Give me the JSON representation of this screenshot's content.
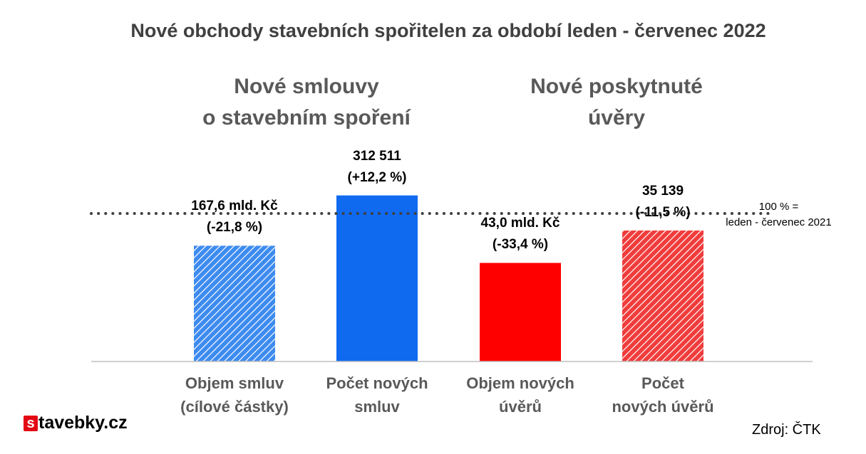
{
  "chart_data": {
    "type": "bar",
    "title": "Nové obchody stavebních spořitelen za období leden - červenec 2022",
    "groups": [
      {
        "lines": [
          "Nové smlouvy",
          "o stavebním spoření"
        ]
      },
      {
        "lines": [
          "Nové poskytnuté",
          "úvěry"
        ]
      }
    ],
    "categories": [
      {
        "lines": [
          "Objem smluv",
          "(cílové částky)"
        ]
      },
      {
        "lines": [
          "Počet  nových",
          "smluv"
        ]
      },
      {
        "lines": [
          "Objem nových",
          "úvěrů"
        ]
      },
      {
        "lines": [
          "Počet",
          "nových úvěrů"
        ]
      }
    ],
    "values": [
      78.2,
      112.2,
      66.6,
      88.5
    ],
    "value_unit": "% of leden - červenec 2021",
    "data_labels": [
      [
        "167,6 mld. Kč",
        "(-21,8 %)"
      ],
      [
        "312 511",
        "(+12,2 %)"
      ],
      [
        "43,0 mld. Kč",
        "(-33,4 %)"
      ],
      [
        "35 139",
        "(-11,5 %)"
      ]
    ],
    "bar_colors": [
      "#3d8bef",
      "#0f6af0",
      "#ff0000",
      "#f05050"
    ],
    "bar_patterns": [
      "hatched",
      "solid",
      "solid",
      "hatched"
    ],
    "reference_line": {
      "value": 100,
      "style": "dotted",
      "lines": [
        "100 % =",
        "leden - červenec 2021"
      ]
    },
    "ylim": [
      0,
      120
    ],
    "grid": false
  },
  "source": "Zdroj: ČTK",
  "logo": {
    "mark": "s",
    "text": "tavebky.cz"
  }
}
